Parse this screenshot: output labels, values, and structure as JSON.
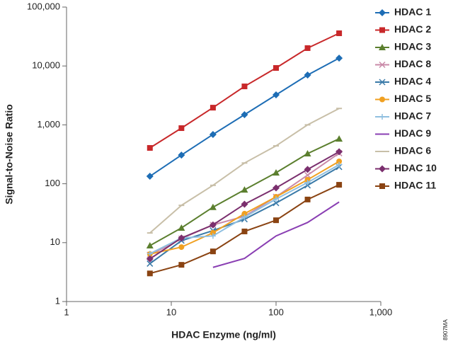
{
  "chart_data": {
    "type": "line",
    "xlabel": "HDAC Enzyme (ng/ml)",
    "ylabel": "Signal-to-Noise Ratio",
    "code": "8907MA",
    "log_x": true,
    "log_y": true,
    "x": [
      6.25,
      12.5,
      25,
      50,
      100,
      200,
      400
    ],
    "xlim": [
      1,
      1000
    ],
    "xticks": [
      1,
      10,
      100,
      {
        "value": 1000,
        "label": "1,000"
      }
    ],
    "ylim": [
      1,
      100000
    ],
    "yticks": [
      1,
      10,
      100,
      {
        "value": 1000,
        "label": "1,000"
      },
      {
        "value": 10000,
        "label": "10,000"
      },
      {
        "value": 100000,
        "label": "100,000"
      }
    ],
    "series": [
      {
        "name": "HDAC 1",
        "color": "#1d6db5",
        "marker": "diamond",
        "values": [
          134,
          307,
          687,
          1490,
          3230,
          7020,
          13600
        ]
      },
      {
        "name": "HDAC 2",
        "color": "#c8282a",
        "marker": "square",
        "values": [
          406,
          880,
          1960,
          4500,
          9250,
          20100,
          35900
        ]
      },
      {
        "name": "HDAC 3",
        "color": "#5b7f2e",
        "marker": "triangle",
        "values": [
          8.9,
          17.8,
          40,
          79,
          154,
          325,
          580
        ]
      },
      {
        "name": "HDAC 8",
        "color": "#c98aa8",
        "marker": "x",
        "values": [
          6.2,
          11.7,
          20,
          28,
          60,
          140,
          330
        ]
      },
      {
        "name": "HDAC 4",
        "color": "#3a7aa8",
        "marker": "x",
        "values": [
          4.4,
          10.8,
          16,
          25,
          47,
          94,
          193
        ]
      },
      {
        "name": "HDAC 5",
        "color": "#f0a021",
        "marker": "circle",
        "values": [
          6.4,
          8.4,
          14.7,
          31,
          60,
          117,
          240
        ]
      },
      {
        "name": "HDAC 7",
        "color": "#8fbfe0",
        "marker": "plus",
        "values": [
          6.5,
          12,
          13,
          27,
          55,
          105,
          210
        ]
      },
      {
        "name": "HDAC 9",
        "color": "#8a3fb3",
        "marker": "none",
        "values": [
          null,
          null,
          3.8,
          5.4,
          13,
          22,
          49
        ]
      },
      {
        "name": "HDAC 6",
        "color": "#c8bfa8",
        "marker": "dash",
        "values": [
          14.6,
          43,
          94,
          225,
          440,
          1000,
          1900
        ]
      },
      {
        "name": "HDAC 10",
        "color": "#7b2f6e",
        "marker": "diamond",
        "values": [
          5.3,
          12,
          20,
          45,
          85,
          175,
          350
        ]
      },
      {
        "name": "HDAC 11",
        "color": "#8a4312",
        "marker": "square",
        "values": [
          3.0,
          4.2,
          7.1,
          15.5,
          24,
          54,
          96
        ]
      }
    ]
  }
}
